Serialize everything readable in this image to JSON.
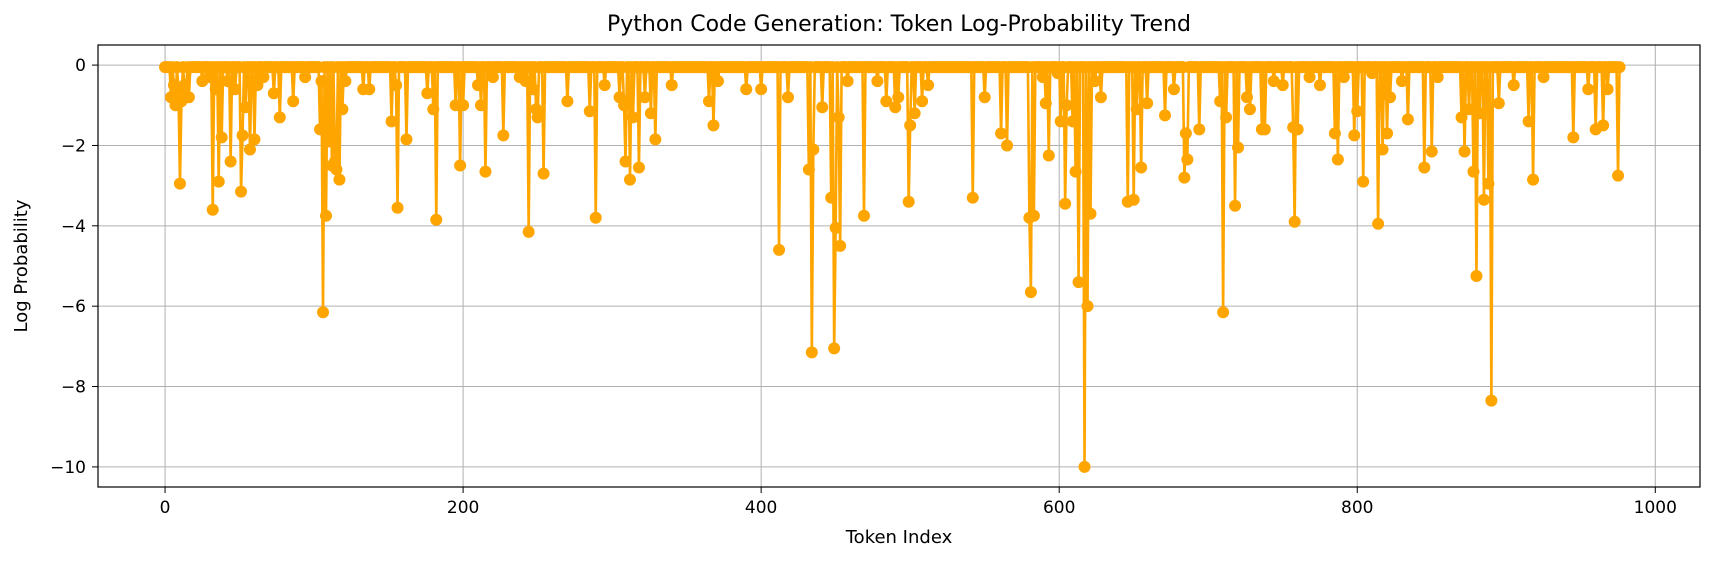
{
  "chart_data": {
    "type": "line",
    "title": "Python Code Generation: Token Log-Probability Trend",
    "xlabel": "Token Index",
    "ylabel": "Log Probability",
    "xlim": [
      -45,
      1030
    ],
    "ylim": [
      -10.5,
      0.5
    ],
    "x_ticks": [
      0,
      200,
      400,
      600,
      800,
      1000
    ],
    "y_ticks": [
      0,
      -2,
      -4,
      -6,
      -8,
      -10
    ],
    "x_tick_labels": [
      "0",
      "200",
      "400",
      "600",
      "800",
      "1000"
    ],
    "y_tick_labels": [
      "0",
      "−2",
      "−4",
      "−6",
      "−8",
      "−10"
    ],
    "grid": true,
    "marker": "circle",
    "series": [
      {
        "color": "#FFA500",
        "n_points": 977,
        "baseline": -0.05,
        "spikes": [
          [
            2,
            -0.05
          ],
          [
            4,
            -0.8
          ],
          [
            6,
            -0.5
          ],
          [
            7,
            -1.0
          ],
          [
            9,
            -0.6
          ],
          [
            10,
            -2.95
          ],
          [
            11,
            -0.9
          ],
          [
            13,
            -0.5
          ],
          [
            14,
            -0.8
          ],
          [
            16,
            -0.8
          ],
          [
            25,
            -0.4
          ],
          [
            30,
            -0.3
          ],
          [
            32,
            -3.6
          ],
          [
            34,
            -0.6
          ],
          [
            36,
            -2.9
          ],
          [
            38,
            -1.8
          ],
          [
            42,
            -0.4
          ],
          [
            44,
            -2.4
          ],
          [
            47,
            -0.6
          ],
          [
            51,
            -3.15
          ],
          [
            52,
            -1.75
          ],
          [
            54,
            -1.05
          ],
          [
            57,
            -2.1
          ],
          [
            60,
            -1.85
          ],
          [
            62,
            -0.5
          ],
          [
            66,
            -0.3
          ],
          [
            73,
            -0.7
          ],
          [
            77,
            -1.3
          ],
          [
            86,
            -0.9
          ],
          [
            94,
            -0.3
          ],
          [
            104,
            -1.6
          ],
          [
            105,
            -0.4
          ],
          [
            106,
            -6.15
          ],
          [
            108,
            -3.75
          ],
          [
            110,
            -1.9
          ],
          [
            112,
            -2.5
          ],
          [
            114,
            -2.4
          ],
          [
            115,
            -2.6
          ],
          [
            117,
            -2.85
          ],
          [
            119,
            -1.1
          ],
          [
            121,
            -0.4
          ],
          [
            133,
            -0.6
          ],
          [
            137,
            -0.6
          ],
          [
            152,
            -1.4
          ],
          [
            155,
            -0.5
          ],
          [
            156,
            -3.55
          ],
          [
            162,
            -1.85
          ],
          [
            176,
            -0.7
          ],
          [
            180,
            -1.1
          ],
          [
            182,
            -3.85
          ],
          [
            195,
            -1.0
          ],
          [
            198,
            -2.5
          ],
          [
            200,
            -1.0
          ],
          [
            210,
            -0.5
          ],
          [
            212,
            -1.0
          ],
          [
            215,
            -2.65
          ],
          [
            220,
            -0.3
          ],
          [
            227,
            -1.75
          ],
          [
            238,
            -0.3
          ],
          [
            242,
            -0.4
          ],
          [
            244,
            -4.15
          ],
          [
            247,
            -0.6
          ],
          [
            249,
            -1.1
          ],
          [
            250,
            -1.3
          ],
          [
            254,
            -2.7
          ],
          [
            270,
            -0.9
          ],
          [
            285,
            -1.15
          ],
          [
            289,
            -3.8
          ],
          [
            295,
            -0.5
          ],
          [
            305,
            -0.8
          ],
          [
            308,
            -1.0
          ],
          [
            309,
            -2.4
          ],
          [
            312,
            -2.85
          ],
          [
            314,
            -1.3
          ],
          [
            318,
            -2.55
          ],
          [
            322,
            -0.8
          ],
          [
            326,
            -1.2
          ],
          [
            329,
            -1.85
          ],
          [
            340,
            -0.5
          ],
          [
            365,
            -0.9
          ],
          [
            368,
            -1.5
          ],
          [
            371,
            -0.4
          ],
          [
            390,
            -0.6
          ],
          [
            400,
            -0.6
          ],
          [
            412,
            -4.6
          ],
          [
            418,
            -0.8
          ],
          [
            432,
            -2.6
          ],
          [
            434,
            -7.15
          ],
          [
            435,
            -2.1
          ],
          [
            441,
            -1.05
          ],
          [
            447,
            -3.3
          ],
          [
            449,
            -7.05
          ],
          [
            450,
            -4.05
          ],
          [
            452,
            -1.3
          ],
          [
            453,
            -4.5
          ],
          [
            458,
            -0.4
          ],
          [
            469,
            -3.75
          ],
          [
            478,
            -0.4
          ],
          [
            484,
            -0.9
          ],
          [
            490,
            -1.05
          ],
          [
            492,
            -0.8
          ],
          [
            499,
            -3.4
          ],
          [
            500,
            -1.5
          ],
          [
            503,
            -1.2
          ],
          [
            508,
            -0.9
          ],
          [
            512,
            -0.5
          ],
          [
            542,
            -3.3
          ],
          [
            550,
            -0.8
          ],
          [
            561,
            -1.7
          ],
          [
            565,
            -2.0
          ],
          [
            580,
            -3.8
          ],
          [
            581,
            -5.65
          ],
          [
            583,
            -3.75
          ],
          [
            589,
            -0.3
          ],
          [
            591,
            -0.95
          ],
          [
            593,
            -2.25
          ],
          [
            599,
            -0.2
          ],
          [
            601,
            -1.4
          ],
          [
            604,
            -3.45
          ],
          [
            605,
            -1.0
          ],
          [
            609,
            -1.4
          ],
          [
            611,
            -2.65
          ],
          [
            613,
            -5.4
          ],
          [
            617,
            -10.0
          ],
          [
            619,
            -6.0
          ],
          [
            621,
            -3.7
          ],
          [
            624,
            -0.4
          ],
          [
            628,
            -0.8
          ],
          [
            646,
            -3.4
          ],
          [
            650,
            -3.35
          ],
          [
            652,
            -1.1
          ],
          [
            655,
            -2.55
          ],
          [
            659,
            -0.95
          ],
          [
            671,
            -1.25
          ],
          [
            677,
            -0.6
          ],
          [
            684,
            -2.8
          ],
          [
            685,
            -1.7
          ],
          [
            686,
            -2.35
          ],
          [
            694,
            -1.6
          ],
          [
            708,
            -0.9
          ],
          [
            710,
            -6.15
          ],
          [
            712,
            -1.3
          ],
          [
            718,
            -3.5
          ],
          [
            720,
            -2.05
          ],
          [
            726,
            -0.8
          ],
          [
            728,
            -1.1
          ],
          [
            736,
            -1.6
          ],
          [
            738,
            -1.6
          ],
          [
            744,
            -0.4
          ],
          [
            750,
            -0.5
          ],
          [
            757,
            -1.55
          ],
          [
            758,
            -3.9
          ],
          [
            760,
            -1.6
          ],
          [
            768,
            -0.3
          ],
          [
            775,
            -0.5
          ],
          [
            785,
            -1.7
          ],
          [
            787,
            -2.35
          ],
          [
            791,
            -0.3
          ],
          [
            798,
            -1.75
          ],
          [
            800,
            -1.15
          ],
          [
            804,
            -2.9
          ],
          [
            810,
            -0.2
          ],
          [
            814,
            -3.95
          ],
          [
            817,
            -2.1
          ],
          [
            820,
            -1.7
          ],
          [
            822,
            -0.8
          ],
          [
            830,
            -0.4
          ],
          [
            834,
            -1.35
          ],
          [
            845,
            -2.55
          ],
          [
            850,
            -2.15
          ],
          [
            854,
            -0.3
          ],
          [
            870,
            -1.3
          ],
          [
            872,
            -2.15
          ],
          [
            875,
            -1.1
          ],
          [
            878,
            -2.65
          ],
          [
            880,
            -5.25
          ],
          [
            882,
            -1.2
          ],
          [
            885,
            -3.35
          ],
          [
            888,
            -2.95
          ],
          [
            890,
            -8.35
          ],
          [
            895,
            -0.95
          ],
          [
            905,
            -0.5
          ],
          [
            915,
            -1.4
          ],
          [
            918,
            -2.85
          ],
          [
            925,
            -0.3
          ],
          [
            945,
            -1.8
          ],
          [
            955,
            -0.6
          ],
          [
            960,
            -1.6
          ],
          [
            965,
            -1.5
          ],
          [
            968,
            -0.6
          ],
          [
            975,
            -2.75
          ],
          [
            976,
            -0.05
          ]
        ]
      }
    ]
  }
}
